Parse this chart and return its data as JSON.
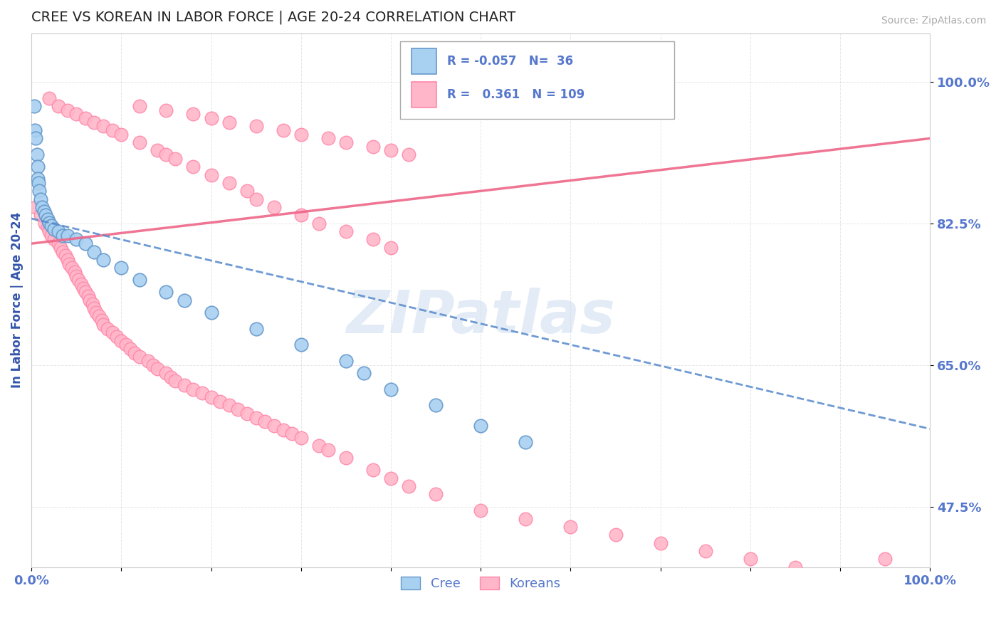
{
  "title": "CREE VS KOREAN IN LABOR FORCE | AGE 20-24 CORRELATION CHART",
  "source_text": "Source: ZipAtlas.com",
  "ylabel": "In Labor Force | Age 20-24",
  "xlim": [
    0.0,
    1.0
  ],
  "ylim": [
    0.4,
    1.06
  ],
  "yticks": [
    0.475,
    0.65,
    0.825,
    1.0
  ],
  "ytick_labels": [
    "47.5%",
    "65.0%",
    "82.5%",
    "100.0%"
  ],
  "xticks": [
    0.0,
    0.1,
    0.2,
    0.3,
    0.4,
    0.5,
    0.6,
    0.7,
    0.8,
    0.9,
    1.0
  ],
  "xtick_labels": [
    "0.0%",
    "",
    "",
    "",
    "",
    "",
    "",
    "",
    "",
    "",
    "100.0%"
  ],
  "cree_color": "#a8d0f0",
  "korean_color": "#ffb6c8",
  "cree_edge_color": "#6699cc",
  "korean_edge_color": "#ff88aa",
  "trend_cree_color": "#5588cc",
  "trend_korean_color": "#ee6688",
  "cree_R": -0.057,
  "cree_N": 36,
  "korean_R": 0.361,
  "korean_N": 109,
  "title_color": "#3355aa",
  "axis_label_color": "#3355aa",
  "tick_color": "#5577cc",
  "source_color": "#aaaaaa",
  "watermark_color": "#ccddef",
  "cree_x": [
    0.003,
    0.004,
    0.005,
    0.006,
    0.007,
    0.007,
    0.008,
    0.009,
    0.01,
    0.012,
    0.014,
    0.016,
    0.018,
    0.02,
    0.022,
    0.025,
    0.03,
    0.035,
    0.04,
    0.05,
    0.06,
    0.07,
    0.08,
    0.1,
    0.12,
    0.15,
    0.17,
    0.2,
    0.25,
    0.3,
    0.35,
    0.37,
    0.4,
    0.45,
    0.5,
    0.55
  ],
  "cree_y": [
    0.97,
    0.94,
    0.93,
    0.91,
    0.895,
    0.88,
    0.875,
    0.865,
    0.855,
    0.845,
    0.84,
    0.835,
    0.83,
    0.826,
    0.822,
    0.818,
    0.815,
    0.81,
    0.81,
    0.805,
    0.8,
    0.79,
    0.78,
    0.77,
    0.755,
    0.74,
    0.73,
    0.715,
    0.695,
    0.675,
    0.655,
    0.64,
    0.62,
    0.6,
    0.575,
    0.555
  ],
  "korean_x": [
    0.005,
    0.01,
    0.015,
    0.018,
    0.02,
    0.022,
    0.025,
    0.03,
    0.032,
    0.035,
    0.038,
    0.04,
    0.042,
    0.045,
    0.048,
    0.05,
    0.052,
    0.055,
    0.058,
    0.06,
    0.063,
    0.065,
    0.068,
    0.07,
    0.072,
    0.075,
    0.078,
    0.08,
    0.085,
    0.09,
    0.095,
    0.1,
    0.105,
    0.11,
    0.115,
    0.12,
    0.13,
    0.135,
    0.14,
    0.15,
    0.155,
    0.16,
    0.17,
    0.18,
    0.19,
    0.2,
    0.21,
    0.22,
    0.23,
    0.24,
    0.25,
    0.26,
    0.27,
    0.28,
    0.29,
    0.3,
    0.32,
    0.33,
    0.35,
    0.38,
    0.4,
    0.42,
    0.45,
    0.5,
    0.55,
    0.6,
    0.65,
    0.7,
    0.75,
    0.8,
    0.85,
    0.95,
    0.02,
    0.03,
    0.04,
    0.05,
    0.06,
    0.07,
    0.08,
    0.09,
    0.1,
    0.12,
    0.14,
    0.15,
    0.16,
    0.18,
    0.2,
    0.22,
    0.24,
    0.25,
    0.27,
    0.3,
    0.32,
    0.35,
    0.38,
    0.4,
    0.12,
    0.15,
    0.18,
    0.2,
    0.22,
    0.25,
    0.28,
    0.3,
    0.33,
    0.35,
    0.38,
    0.4,
    0.42
  ],
  "korean_y": [
    0.845,
    0.835,
    0.825,
    0.82,
    0.815,
    0.81,
    0.805,
    0.8,
    0.795,
    0.79,
    0.785,
    0.78,
    0.775,
    0.77,
    0.765,
    0.76,
    0.755,
    0.75,
    0.745,
    0.74,
    0.735,
    0.73,
    0.725,
    0.72,
    0.715,
    0.71,
    0.705,
    0.7,
    0.695,
    0.69,
    0.685,
    0.68,
    0.675,
    0.67,
    0.665,
    0.66,
    0.655,
    0.65,
    0.645,
    0.64,
    0.635,
    0.63,
    0.625,
    0.62,
    0.615,
    0.61,
    0.605,
    0.6,
    0.595,
    0.59,
    0.585,
    0.58,
    0.575,
    0.57,
    0.565,
    0.56,
    0.55,
    0.545,
    0.535,
    0.52,
    0.51,
    0.5,
    0.49,
    0.47,
    0.46,
    0.45,
    0.44,
    0.43,
    0.42,
    0.41,
    0.4,
    0.41,
    0.98,
    0.97,
    0.965,
    0.96,
    0.955,
    0.95,
    0.945,
    0.94,
    0.935,
    0.925,
    0.915,
    0.91,
    0.905,
    0.895,
    0.885,
    0.875,
    0.865,
    0.855,
    0.845,
    0.835,
    0.825,
    0.815,
    0.805,
    0.795,
    0.97,
    0.965,
    0.96,
    0.955,
    0.95,
    0.945,
    0.94,
    0.935,
    0.93,
    0.925,
    0.92,
    0.915,
    0.91
  ]
}
